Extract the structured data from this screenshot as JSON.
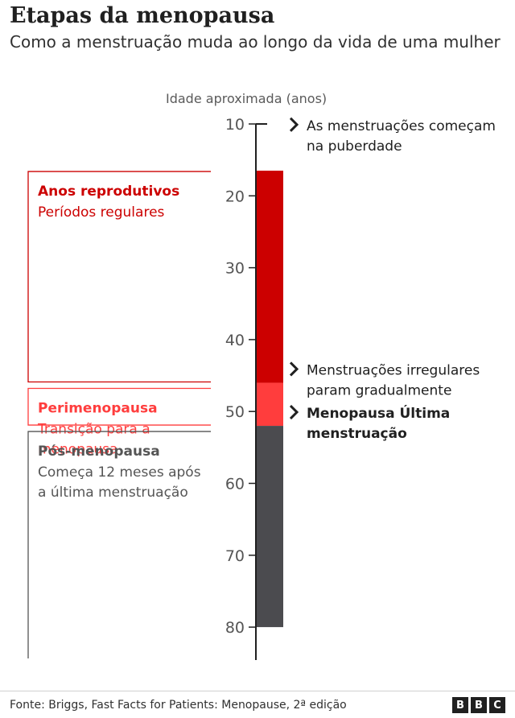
{
  "header": {
    "title": "Etapas da menopausa",
    "subtitle": "Como a menstruação muda ao longo da vida de uma mulher"
  },
  "chart_data": {
    "type": "bar",
    "ylabel": "Idade aproximada (anos)",
    "ylim": [
      10,
      80
    ],
    "y_ticks": [
      10,
      20,
      30,
      40,
      50,
      60,
      70,
      80
    ],
    "segments": [
      {
        "name": "Anos reprodutivos",
        "start": 16.5,
        "end": 46,
        "color": "#cc0000"
      },
      {
        "name": "Perimenopausa",
        "start": 46,
        "end": 52,
        "color": "#ff3d3d"
      },
      {
        "name": "Pós-menopausa",
        "start": 52,
        "end": 80,
        "color": "#4b4b4f"
      }
    ],
    "stages": [
      {
        "title": "Anos reprodutivos",
        "lines": [
          "Períodos regulares"
        ],
        "start": 16.5,
        "end": 46,
        "color": "#cc0000"
      },
      {
        "title": "Perimenopausa",
        "lines": [
          "Transição para a",
          "menopausa"
        ],
        "start": 46,
        "end": 52,
        "color": "#ff3d3d"
      },
      {
        "title": "Pós-menopausa",
        "lines": [
          "Começa 12 meses após",
          " a última menstruação"
        ],
        "start": 52,
        "end": 80,
        "color": "#555555"
      }
    ],
    "annotations": [
      {
        "age": 12,
        "lines": [
          "As menstruações começam",
          " na puberdade"
        ],
        "bold": false
      },
      {
        "age": 46,
        "lines": [
          "Menstruações irregulares",
          "param gradualmente"
        ],
        "bold": false
      },
      {
        "age": 52,
        "lines": [
          "Menopausa Última",
          "menstruação"
        ],
        "bold": true
      }
    ]
  },
  "footer": {
    "source": "Fonte: Briggs, Fast Facts for Patients: Menopause, 2ª edição",
    "logo": [
      "B",
      "B",
      "C"
    ]
  }
}
